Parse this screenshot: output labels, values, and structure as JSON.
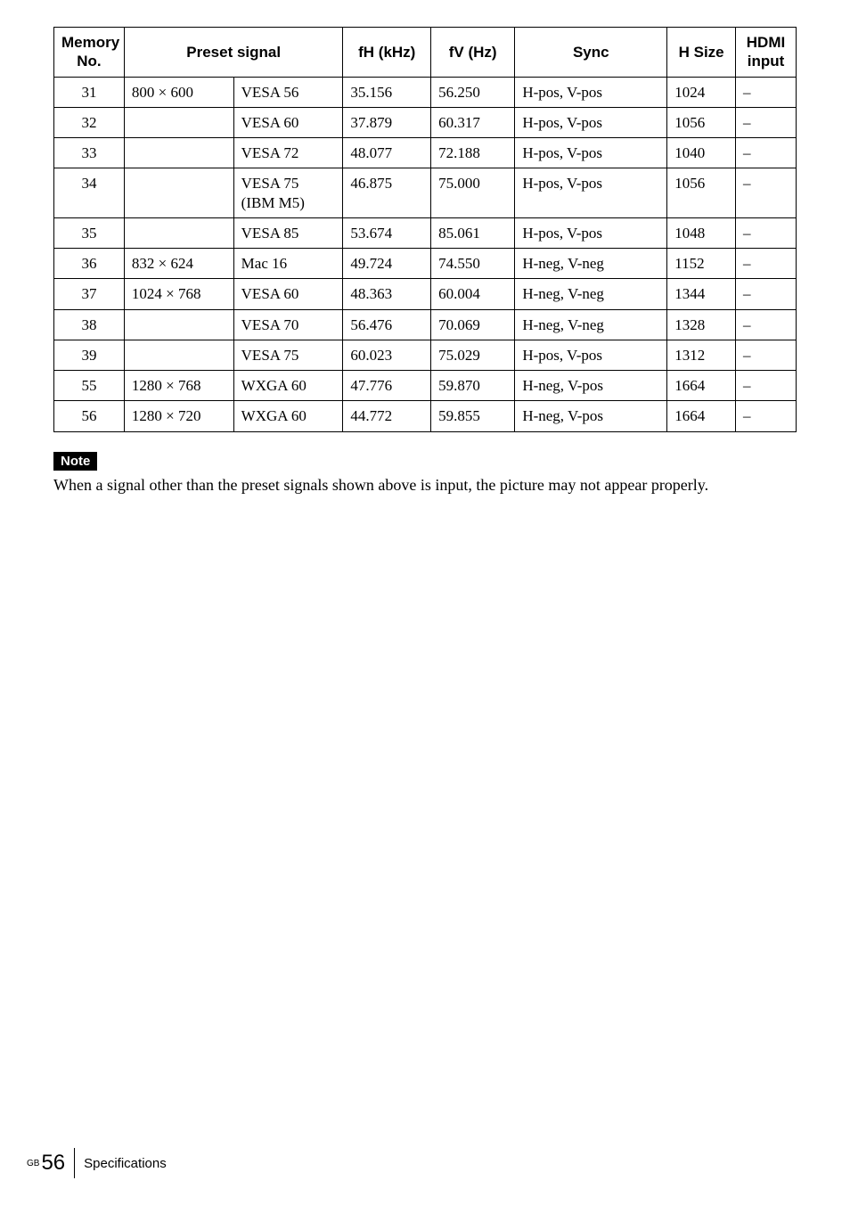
{
  "table": {
    "headers": {
      "memory": "Memory No.",
      "preset": "Preset signal",
      "fh": "fH (kHz)",
      "fv": "fV (Hz)",
      "sync": "Sync",
      "hsize": "H Size",
      "hdmi": "HDMI input"
    },
    "rows": [
      {
        "mem": "31",
        "res": "800 × 600",
        "mode": "VESA 56",
        "fh": "35.156",
        "fv": "56.250",
        "sync": "H-pos, V-pos",
        "hsize": "1024",
        "hdmi": "–",
        "res_border": "start"
      },
      {
        "mem": "32",
        "res": "",
        "mode": "VESA 60",
        "fh": "37.879",
        "fv": "60.317",
        "sync": "H-pos, V-pos",
        "hsize": "1056",
        "hdmi": "–",
        "res_border": "mid"
      },
      {
        "mem": "33",
        "res": "",
        "mode": "VESA 72",
        "fh": "48.077",
        "fv": "72.188",
        "sync": "H-pos, V-pos",
        "hsize": "1040",
        "hdmi": "–",
        "res_border": "mid"
      },
      {
        "mem": "34",
        "res": "",
        "mode": "VESA 75 (IBM M5)",
        "fh": "46.875",
        "fv": "75.000",
        "sync": "H-pos, V-pos",
        "hsize": "1056",
        "hdmi": "–",
        "res_border": "mid"
      },
      {
        "mem": "35",
        "res": "",
        "mode": "VESA 85",
        "fh": "53.674",
        "fv": "85.061",
        "sync": "H-pos, V-pos",
        "hsize": "1048",
        "hdmi": "–",
        "res_border": "end"
      },
      {
        "mem": "36",
        "res": "832 × 624",
        "mode": "Mac 16",
        "fh": "49.724",
        "fv": "74.550",
        "sync": "H-neg, V-neg",
        "hsize": "1152",
        "hdmi": "–",
        "res_border": "single"
      },
      {
        "mem": "37",
        "res": "1024 × 768",
        "mode": "VESA 60",
        "fh": "48.363",
        "fv": "60.004",
        "sync": "H-neg, V-neg",
        "hsize": "1344",
        "hdmi": "–",
        "res_border": "start"
      },
      {
        "mem": "38",
        "res": "",
        "mode": "VESA 70",
        "fh": "56.476",
        "fv": "70.069",
        "sync": "H-neg, V-neg",
        "hsize": "1328",
        "hdmi": "–",
        "res_border": "mid"
      },
      {
        "mem": "39",
        "res": "",
        "mode": "VESA 75",
        "fh": "60.023",
        "fv": "75.029",
        "sync": "H-pos, V-pos",
        "hsize": "1312",
        "hdmi": "–",
        "res_border": "end"
      },
      {
        "mem": "55",
        "res": "1280 × 768",
        "mode": "WXGA 60",
        "fh": "47.776",
        "fv": "59.870",
        "sync": "H-neg, V-pos",
        "hsize": "1664",
        "hdmi": "–",
        "res_border": "single"
      },
      {
        "mem": "56",
        "res": "1280 × 720",
        "mode": "WXGA 60",
        "fh": "44.772",
        "fv": "59.855",
        "sync": "H-neg, V-pos",
        "hsize": "1664",
        "hdmi": "–",
        "res_border": "single"
      }
    ]
  },
  "note": {
    "badge": "Note",
    "text": "When a signal other than the preset signals shown above is input, the picture may not appear properly."
  },
  "footer": {
    "gb": "GB",
    "page": "56",
    "section": "Specifications"
  }
}
